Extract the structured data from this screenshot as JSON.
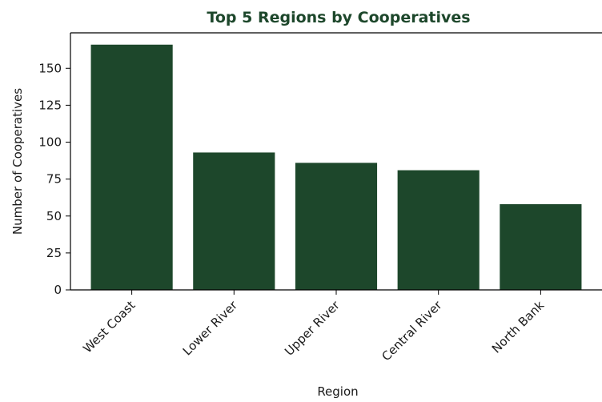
{
  "chart_data": {
    "type": "bar",
    "title": "Top 5 Regions by Cooperatives",
    "xlabel": "Region",
    "ylabel": "Number of Cooperatives",
    "categories": [
      "West Coast",
      "Lower River",
      "Upper River",
      "Central River",
      "North Bank"
    ],
    "values": [
      166,
      93,
      86,
      81,
      58
    ],
    "yticks": [
      "0",
      "25",
      "50",
      "75",
      "100",
      "125",
      "150"
    ],
    "ylim": [
      0,
      174
    ],
    "grid": false,
    "legend": "none",
    "x_tick_rotation": 45
  },
  "colors": {
    "bar": "#1d472b",
    "title": "#1d472b",
    "axis": "#000000",
    "text": "#1a1a1a"
  }
}
